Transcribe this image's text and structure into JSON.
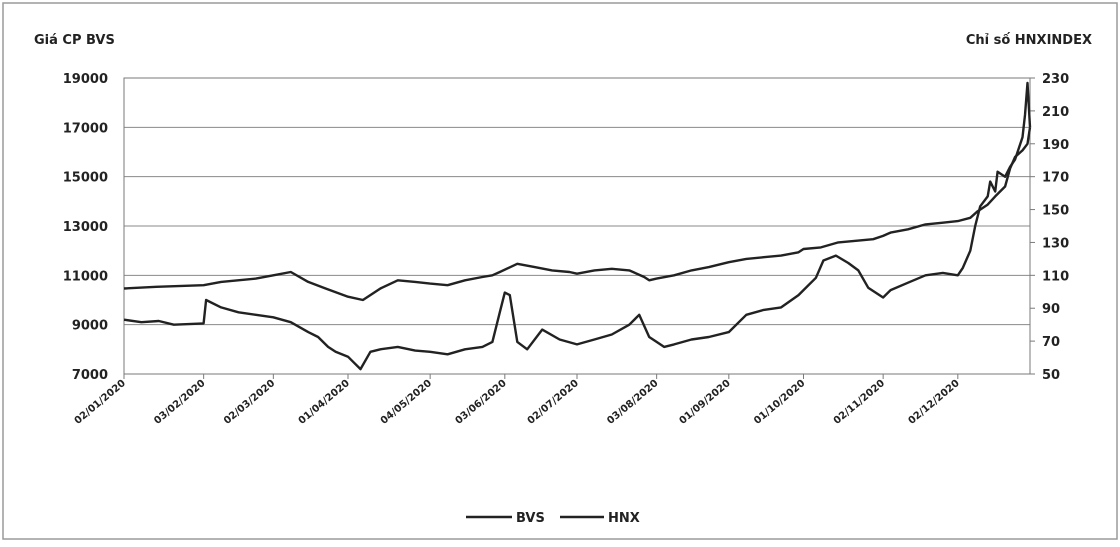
{
  "chart_data": {
    "type": "line",
    "left_axis_title": "Giá CP BVS",
    "right_axis_title": "Chỉ số HNXINDEX",
    "y_left": {
      "min": 7000,
      "max": 19000,
      "ticks": [
        7000,
        9000,
        11000,
        13000,
        15000,
        17000,
        19000
      ]
    },
    "y_right": {
      "min": 50,
      "max": 230,
      "ticks": [
        50,
        70,
        90,
        110,
        130,
        150,
        170,
        190,
        210,
        230
      ]
    },
    "grid": "horizontal",
    "legend_position": "bottom",
    "x_labels": [
      "02/01/2020",
      "03/02/2020",
      "02/03/2020",
      "01/04/2020",
      "04/05/2020",
      "03/06/2020",
      "02/07/2020",
      "03/08/2020",
      "01/09/2020",
      "01/10/2020",
      "02/11/2020",
      "02/12/2020"
    ],
    "series": [
      {
        "name": "BVS",
        "axis": "left",
        "points": [
          [
            "02/01/2020",
            9200
          ],
          [
            "09/01/2020",
            9100
          ],
          [
            "16/01/2020",
            9150
          ],
          [
            "22/01/2020",
            9000
          ],
          [
            "03/02/2020",
            9050
          ],
          [
            "04/02/2020",
            10000
          ],
          [
            "10/02/2020",
            9700
          ],
          [
            "17/02/2020",
            9500
          ],
          [
            "24/02/2020",
            9400
          ],
          [
            "02/03/2020",
            9300
          ],
          [
            "09/03/2020",
            9100
          ],
          [
            "16/03/2020",
            8700
          ],
          [
            "20/03/2020",
            8500
          ],
          [
            "24/03/2020",
            8100
          ],
          [
            "27/03/2020",
            7900
          ],
          [
            "01/04/2020",
            7700
          ],
          [
            "03/04/2020",
            7500
          ],
          [
            "06/04/2020",
            7200
          ],
          [
            "10/04/2020",
            7900
          ],
          [
            "14/04/2020",
            8000
          ],
          [
            "21/04/2020",
            8100
          ],
          [
            "28/04/2020",
            7950
          ],
          [
            "04/05/2020",
            7900
          ],
          [
            "11/05/2020",
            7800
          ],
          [
            "18/05/2020",
            8000
          ],
          [
            "25/05/2020",
            8100
          ],
          [
            "29/05/2020",
            8300
          ],
          [
            "01/06/2020",
            9500
          ],
          [
            "03/06/2020",
            10300
          ],
          [
            "05/06/2020",
            10200
          ],
          [
            "08/06/2020",
            8300
          ],
          [
            "12/06/2020",
            8000
          ],
          [
            "18/06/2020",
            8800
          ],
          [
            "25/06/2020",
            8400
          ],
          [
            "02/07/2020",
            8200
          ],
          [
            "09/07/2020",
            8400
          ],
          [
            "16/07/2020",
            8600
          ],
          [
            "23/07/2020",
            9000
          ],
          [
            "27/07/2020",
            9400
          ],
          [
            "31/07/2020",
            8500
          ],
          [
            "03/08/2020",
            8300
          ],
          [
            "06/08/2020",
            8100
          ],
          [
            "10/08/2020",
            8200
          ],
          [
            "17/08/2020",
            8400
          ],
          [
            "24/08/2020",
            8500
          ],
          [
            "01/09/2020",
            8700
          ],
          [
            "08/09/2020",
            9400
          ],
          [
            "15/09/2020",
            9600
          ],
          [
            "22/09/2020",
            9700
          ],
          [
            "29/09/2020",
            10200
          ],
          [
            "01/10/2020",
            10400
          ],
          [
            "06/10/2020",
            10900
          ],
          [
            "09/10/2020",
            11600
          ],
          [
            "14/10/2020",
            11800
          ],
          [
            "19/10/2020",
            11500
          ],
          [
            "23/10/2020",
            11200
          ],
          [
            "27/10/2020",
            10500
          ],
          [
            "02/11/2020",
            10100
          ],
          [
            "05/11/2020",
            10400
          ],
          [
            "12/11/2020",
            10700
          ],
          [
            "19/11/2020",
            11000
          ],
          [
            "26/11/2020",
            11100
          ],
          [
            "02/12/2020",
            11000
          ],
          [
            "04/12/2020",
            11300
          ],
          [
            "07/12/2020",
            12000
          ],
          [
            "09/12/2020",
            13000
          ],
          [
            "11/12/2020",
            13800
          ],
          [
            "14/12/2020",
            14200
          ],
          [
            "15/12/2020",
            14800
          ],
          [
            "17/12/2020",
            14400
          ],
          [
            "18/12/2020",
            15200
          ],
          [
            "21/12/2020",
            15000
          ],
          [
            "23/12/2020",
            15400
          ],
          [
            "25/12/2020",
            15700
          ],
          [
            "28/12/2020",
            16600
          ],
          [
            "29/12/2020",
            17500
          ],
          [
            "30/12/2020",
            18800
          ],
          [
            "31/12/2020",
            17000
          ]
        ]
      },
      {
        "name": "HNX",
        "axis": "right",
        "points": [
          [
            "02/01/2020",
            102
          ],
          [
            "15/01/2020",
            103
          ],
          [
            "03/02/2020",
            104
          ],
          [
            "10/02/2020",
            106
          ],
          [
            "24/02/2020",
            108
          ],
          [
            "02/03/2020",
            110
          ],
          [
            "09/03/2020",
            112
          ],
          [
            "16/03/2020",
            106
          ],
          [
            "23/03/2020",
            102
          ],
          [
            "01/04/2020",
            97
          ],
          [
            "07/04/2020",
            95
          ],
          [
            "14/04/2020",
            102
          ],
          [
            "21/04/2020",
            107
          ],
          [
            "28/04/2020",
            106
          ],
          [
            "04/05/2020",
            105
          ],
          [
            "11/05/2020",
            104
          ],
          [
            "18/05/2020",
            107
          ],
          [
            "25/05/2020",
            109
          ],
          [
            "29/05/2020",
            110
          ],
          [
            "01/06/2020",
            112
          ],
          [
            "08/06/2020",
            117
          ],
          [
            "15/06/2020",
            115
          ],
          [
            "22/06/2020",
            113
          ],
          [
            "29/06/2020",
            112
          ],
          [
            "02/07/2020",
            111
          ],
          [
            "09/07/2020",
            113
          ],
          [
            "16/07/2020",
            114
          ],
          [
            "23/07/2020",
            113
          ],
          [
            "29/07/2020",
            109
          ],
          [
            "31/07/2020",
            107
          ],
          [
            "03/08/2020",
            108
          ],
          [
            "10/08/2020",
            110
          ],
          [
            "17/08/2020",
            113
          ],
          [
            "24/08/2020",
            115
          ],
          [
            "01/09/2020",
            118
          ],
          [
            "08/09/2020",
            120
          ],
          [
            "15/09/2020",
            121
          ],
          [
            "22/09/2020",
            122
          ],
          [
            "29/09/2020",
            124
          ],
          [
            "01/10/2020",
            126
          ],
          [
            "08/10/2020",
            127
          ],
          [
            "15/10/2020",
            130
          ],
          [
            "22/10/2020",
            131
          ],
          [
            "29/10/2020",
            132
          ],
          [
            "02/11/2020",
            134
          ],
          [
            "05/11/2020",
            136
          ],
          [
            "12/11/2020",
            138
          ],
          [
            "19/11/2020",
            141
          ],
          [
            "26/11/2020",
            142
          ],
          [
            "02/12/2020",
            143
          ],
          [
            "07/12/2020",
            145
          ],
          [
            "10/12/2020",
            149
          ],
          [
            "14/12/2020",
            153
          ],
          [
            "17/12/2020",
            158
          ],
          [
            "21/12/2020",
            164
          ],
          [
            "23/12/2020",
            175
          ],
          [
            "25/12/2020",
            182
          ],
          [
            "28/12/2020",
            186
          ],
          [
            "30/12/2020",
            190
          ],
          [
            "31/12/2020",
            200
          ]
        ]
      }
    ],
    "legend": [
      {
        "name": "BVS",
        "color": "#222222"
      },
      {
        "name": "HNX",
        "color": "#222222"
      }
    ]
  }
}
